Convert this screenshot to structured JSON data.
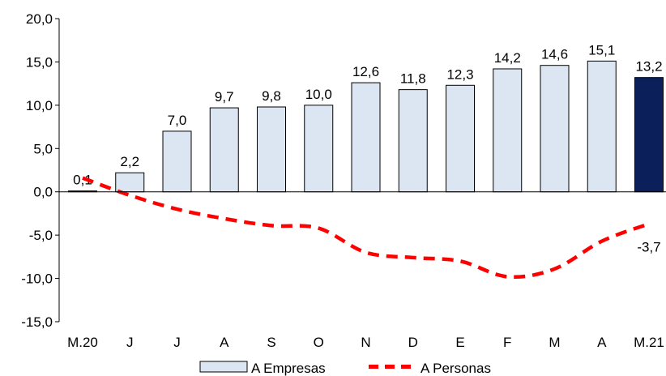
{
  "chart_data": {
    "type": "bar",
    "categories": [
      "M.20",
      "J",
      "J",
      "A",
      "S",
      "O",
      "N",
      "D",
      "E",
      "F",
      "M",
      "A",
      "M.21"
    ],
    "ylim": [
      -15,
      20
    ],
    "yticks": [
      20,
      15,
      10,
      5,
      0,
      -5,
      -10,
      -15
    ],
    "ytick_labels": [
      "20,0",
      "15,0",
      "10,0",
      "5,0",
      "0,0",
      "-5,0",
      "-10,0",
      "-15,0"
    ],
    "grid": false,
    "legend_position": "bottom",
    "series": [
      {
        "name": "A Empresas",
        "type": "bar",
        "values": [
          0.1,
          2.2,
          7.0,
          9.7,
          9.8,
          10.0,
          12.6,
          11.8,
          12.3,
          14.2,
          14.6,
          15.1,
          13.2
        ],
        "labels": [
          "0,1",
          "2,2",
          "7,0",
          "9,7",
          "9,8",
          "10,0",
          "12,6",
          "11,8",
          "12,3",
          "14,2",
          "14,6",
          "15,1",
          "13,2"
        ],
        "color": "#dce6f2",
        "highlight_color": "#0b1f5b",
        "highlight_index": 12
      },
      {
        "name": "A Personas",
        "type": "line",
        "style": "dashed",
        "values": [
          1.6,
          -0.4,
          -2.0,
          -3.1,
          -3.9,
          -4.2,
          -7.0,
          -7.6,
          -8.0,
          -9.8,
          -8.9,
          -5.7,
          -3.7
        ],
        "end_label": "-3,7",
        "color": "#ff0000"
      }
    ]
  }
}
